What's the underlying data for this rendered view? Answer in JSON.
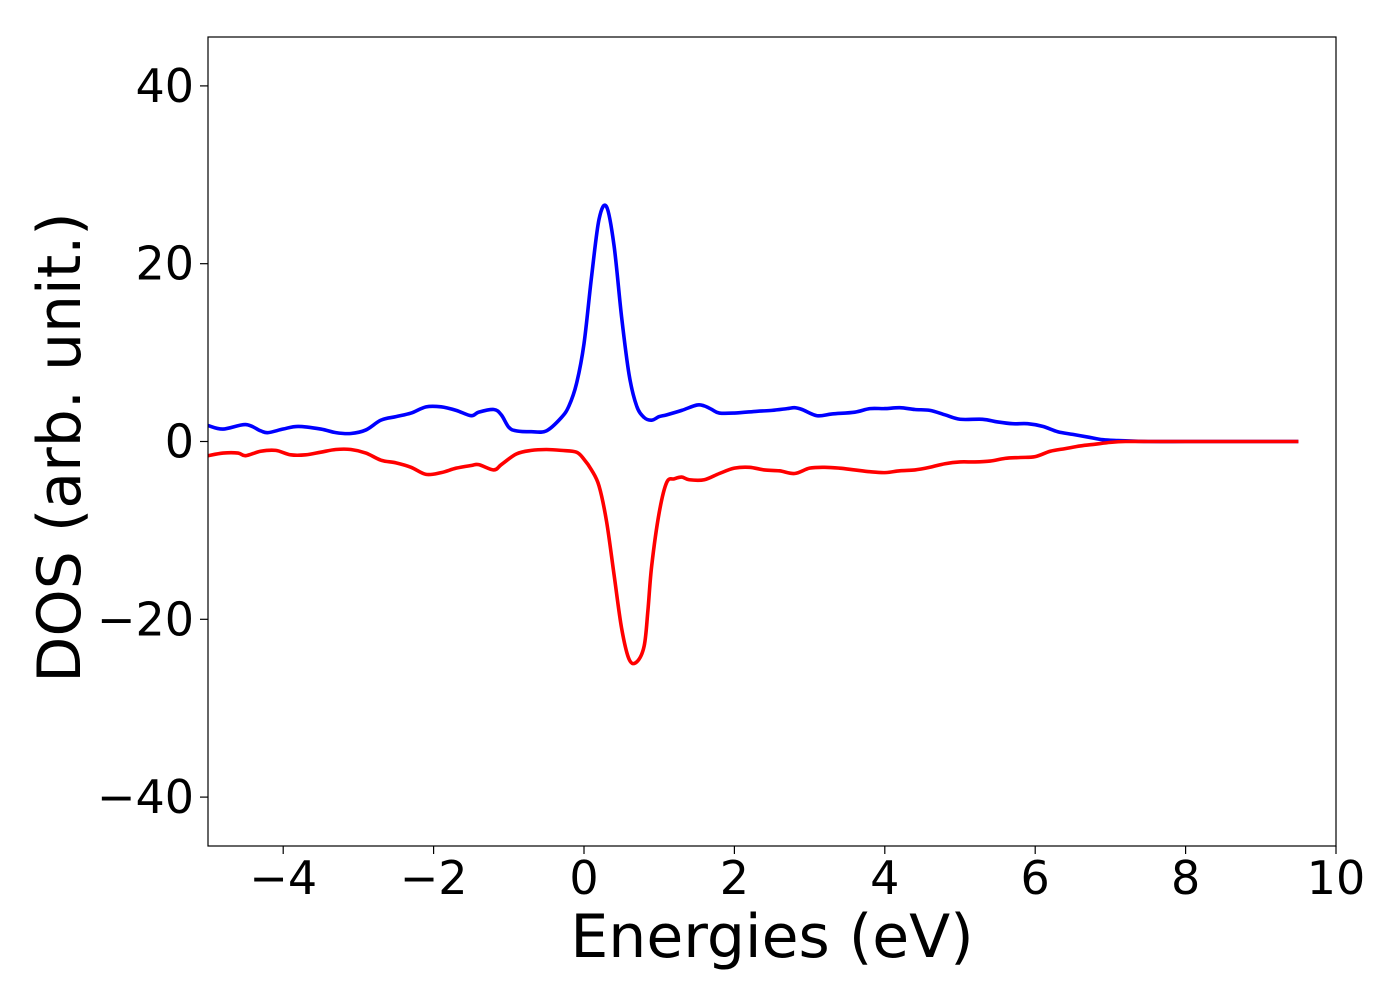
{
  "chart_data": {
    "type": "line",
    "title": "",
    "xlabel": "Energies (eV)",
    "ylabel": "DOS (arb. unit.)",
    "xlim": [
      -5,
      10
    ],
    "ylim": [
      -45.5,
      45.5
    ],
    "xticks": [
      -4,
      -2,
      0,
      2,
      4,
      6,
      8,
      10
    ],
    "xtick_labels": [
      "−4",
      "−2",
      "0",
      "2",
      "4",
      "6",
      "8",
      "10"
    ],
    "yticks": [
      40,
      20,
      0,
      -20,
      -40
    ],
    "ytick_labels": [
      "40",
      "20",
      "0",
      "−20",
      "−40"
    ],
    "grid": false,
    "legend": "none",
    "series": [
      {
        "color": "#0000ff",
        "x": [
          -5.0,
          -4.8,
          -4.5,
          -4.3,
          -4.2,
          -4.0,
          -3.8,
          -3.5,
          -3.3,
          -3.1,
          -2.9,
          -2.7,
          -2.5,
          -2.3,
          -2.1,
          -1.9,
          -1.7,
          -1.5,
          -1.4,
          -1.2,
          -1.1,
          -1.0,
          -0.9,
          -0.7,
          -0.5,
          -0.3,
          -0.2,
          -0.1,
          0.0,
          0.1,
          0.2,
          0.3,
          0.4,
          0.5,
          0.6,
          0.7,
          0.8,
          0.9,
          1.0,
          1.1,
          1.3,
          1.5,
          1.6,
          1.7,
          1.8,
          2.0,
          2.3,
          2.5,
          2.7,
          2.8,
          2.9,
          3.1,
          3.3,
          3.6,
          3.8,
          4.0,
          4.2,
          4.4,
          4.6,
          4.8,
          5.0,
          5.3,
          5.5,
          5.7,
          5.9,
          6.1,
          6.3,
          6.5,
          6.7,
          6.9,
          7.1,
          7.5,
          8.0,
          8.5,
          9.0,
          9.5
        ],
        "y": [
          1.8,
          1.4,
          1.9,
          1.2,
          1.0,
          1.4,
          1.7,
          1.4,
          1.0,
          0.9,
          1.3,
          2.4,
          2.8,
          3.2,
          3.9,
          3.9,
          3.5,
          2.9,
          3.3,
          3.6,
          3.0,
          1.6,
          1.2,
          1.1,
          1.2,
          2.7,
          4.0,
          6.5,
          11.0,
          18.5,
          25.0,
          26.4,
          22.0,
          14.0,
          7.5,
          4.0,
          2.7,
          2.4,
          2.8,
          3.0,
          3.5,
          4.1,
          4.0,
          3.6,
          3.2,
          3.2,
          3.4,
          3.5,
          3.7,
          3.8,
          3.6,
          2.9,
          3.1,
          3.3,
          3.7,
          3.7,
          3.8,
          3.6,
          3.5,
          3.0,
          2.5,
          2.5,
          2.2,
          2.0,
          2.0,
          1.7,
          1.1,
          0.8,
          0.5,
          0.2,
          0.1,
          0.0,
          0.0,
          0.0,
          0.0,
          0.0
        ]
      },
      {
        "color": "#ff0000",
        "x": [
          -5.0,
          -4.8,
          -4.6,
          -4.5,
          -4.3,
          -4.1,
          -3.9,
          -3.7,
          -3.5,
          -3.3,
          -3.1,
          -2.9,
          -2.7,
          -2.5,
          -2.3,
          -2.1,
          -1.9,
          -1.7,
          -1.5,
          -1.4,
          -1.2,
          -1.1,
          -0.9,
          -0.7,
          -0.5,
          -0.3,
          -0.1,
          0.0,
          0.1,
          0.2,
          0.3,
          0.4,
          0.5,
          0.6,
          0.7,
          0.8,
          0.85,
          0.9,
          1.0,
          1.1,
          1.2,
          1.3,
          1.4,
          1.6,
          1.8,
          2.0,
          2.2,
          2.4,
          2.6,
          2.8,
          3.0,
          3.2,
          3.4,
          3.6,
          3.8,
          4.0,
          4.2,
          4.4,
          4.6,
          4.8,
          5.0,
          5.2,
          5.4,
          5.6,
          5.8,
          6.0,
          6.2,
          6.4,
          6.6,
          6.8,
          7.0,
          7.2,
          7.5,
          8.0,
          8.5,
          9.0,
          9.5
        ],
        "y": [
          -1.6,
          -1.3,
          -1.3,
          -1.6,
          -1.1,
          -1.0,
          -1.5,
          -1.5,
          -1.2,
          -0.9,
          -0.9,
          -1.3,
          -2.1,
          -2.4,
          -2.9,
          -3.7,
          -3.5,
          -3.0,
          -2.7,
          -2.6,
          -3.2,
          -2.6,
          -1.4,
          -1.0,
          -0.9,
          -1.0,
          -1.2,
          -2.0,
          -3.2,
          -5.0,
          -9.0,
          -15.0,
          -21.0,
          -24.5,
          -24.8,
          -23.0,
          -19.0,
          -14.0,
          -8.0,
          -4.6,
          -4.2,
          -4.0,
          -4.3,
          -4.3,
          -3.6,
          -3.0,
          -2.9,
          -3.2,
          -3.3,
          -3.6,
          -3.0,
          -2.9,
          -3.0,
          -3.2,
          -3.4,
          -3.5,
          -3.3,
          -3.2,
          -2.9,
          -2.5,
          -2.3,
          -2.3,
          -2.2,
          -1.9,
          -1.8,
          -1.7,
          -1.1,
          -0.8,
          -0.5,
          -0.3,
          -0.1,
          0.0,
          0.0,
          0.0,
          0.0,
          0.0,
          0.0
        ]
      }
    ]
  }
}
